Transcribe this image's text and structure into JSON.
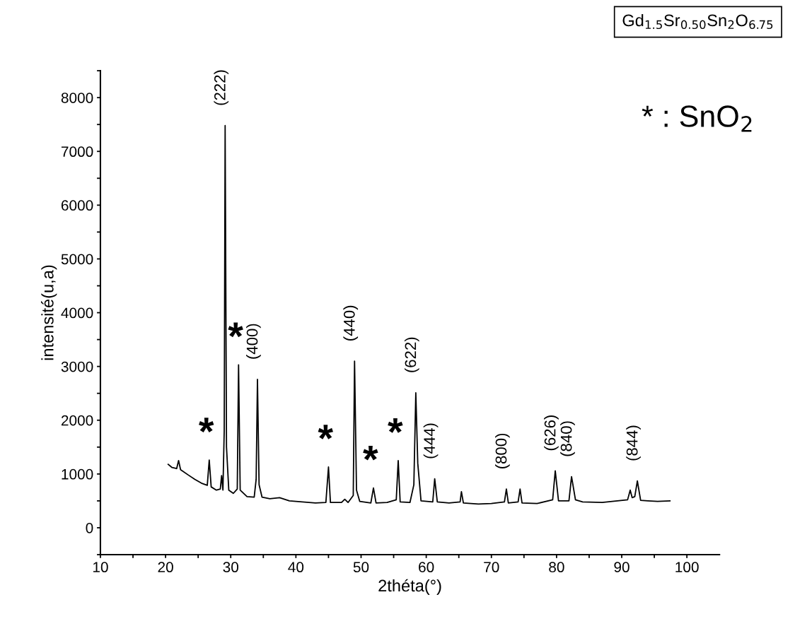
{
  "chart_data": {
    "type": "line",
    "xlabel": "2théta(°)",
    "ylabel": "intensité(u,a)",
    "xlim": [
      10,
      105
    ],
    "ylim": [
      -500,
      8500
    ],
    "xticks": [
      10,
      {
        "value": 15,
        "label": null
      },
      20,
      {
        "value": 25,
        "label": null
      },
      30,
      {
        "value": 35,
        "label": null
      },
      40,
      {
        "value": 45,
        "label": null
      },
      50,
      {
        "value": 55,
        "label": null
      },
      60,
      {
        "value": 65,
        "label": null
      },
      70,
      {
        "value": 75,
        "label": null
      },
      80,
      {
        "value": 85,
        "label": null
      },
      90,
      {
        "value": 95,
        "label": null
      },
      100
    ],
    "yticks": [
      {
        "value": -500,
        "label": null
      },
      0,
      {
        "value": 500,
        "label": null
      },
      1000,
      {
        "value": 1500,
        "label": null
      },
      2000,
      {
        "value": 2500,
        "label": null
      },
      3000,
      {
        "value": 3500,
        "label": null
      },
      4000,
      {
        "value": 4500,
        "label": null
      },
      5000,
      {
        "value": 5500,
        "label": null
      },
      6000,
      {
        "value": 6500,
        "label": null
      },
      7000,
      {
        "value": 7500,
        "label": null
      },
      8000,
      {
        "value": 8500,
        "label": null
      }
    ],
    "grid": false,
    "marker": "none",
    "line_style": "solid",
    "series": [
      {
        "color": "#000000",
        "x": [
          20.4,
          21.0,
          21.7,
          22.0,
          22.3,
          23.5,
          24.5,
          25.5,
          26.4,
          26.7,
          27.0,
          27.8,
          28.4,
          28.6,
          28.8,
          29.0,
          29.14,
          29.35,
          29.7,
          30.4,
          31.0,
          31.2,
          31.45,
          32.5,
          33.6,
          33.9,
          34.1,
          34.35,
          34.8,
          36,
          37.5,
          39,
          41,
          43,
          44.6,
          45.0,
          45.3,
          47,
          47.5,
          48,
          48.8,
          49.0,
          49.3,
          49.8,
          51.5,
          51.9,
          52.3,
          54,
          55.4,
          55.7,
          56.0,
          57.5,
          58.1,
          58.4,
          58.7,
          59.2,
          61.0,
          61.3,
          61.7,
          63.5,
          65.2,
          65.4,
          65.7,
          68,
          70,
          72.0,
          72.3,
          72.6,
          74.1,
          74.4,
          74.7,
          77,
          79.4,
          79.8,
          80.3,
          81.9,
          82.3,
          82.9,
          84,
          87,
          90.9,
          91.3,
          91.6,
          92.0,
          92.4,
          92.9,
          94,
          95.5,
          97.4
        ],
        "values": [
          1180,
          1120,
          1100,
          1250,
          1080,
          980,
          900,
          830,
          790,
          1260,
          760,
          700,
          720,
          970,
          700,
          1800,
          7480,
          1500,
          700,
          640,
          720,
          3030,
          700,
          580,
          570,
          900,
          2760,
          800,
          570,
          540,
          560,
          500,
          480,
          460,
          470,
          1130,
          470,
          470,
          530,
          470,
          600,
          3100,
          700,
          490,
          460,
          740,
          460,
          470,
          520,
          1250,
          480,
          470,
          800,
          2510,
          1200,
          500,
          480,
          910,
          480,
          460,
          480,
          670,
          460,
          440,
          450,
          480,
          720,
          460,
          480,
          720,
          460,
          450,
          520,
          1060,
          500,
          500,
          950,
          520,
          480,
          470,
          520,
          700,
          560,
          580,
          870,
          510,
          500,
          490,
          500
        ]
      }
    ],
    "annotations": [
      "Gd$_{1.5}$Sr$_{0.50}$Sn$_{2}$O$_{6.75}$",
      "* : SnO$_{2}$",
      {
        "text": "(222)",
        "x": 29.14,
        "y": 7480
      },
      {
        "text": "(400)",
        "x": 34.1,
        "y": 2760
      },
      {
        "text": "(440)",
        "x": 49.0,
        "y": 3100
      },
      {
        "text": "(622)",
        "x": 58.4,
        "y": 2510
      },
      {
        "text": "(444)",
        "x": 61.3,
        "y": 910
      },
      {
        "text": "(800)",
        "x": 72.3,
        "y": 720
      },
      {
        "text": "(626)",
        "x": 79.8,
        "y": 1060
      },
      {
        "text": "(840)",
        "x": 82.3,
        "y": 950
      },
      {
        "text": "(844)",
        "x": 92.4,
        "y": 870
      },
      {
        "text": "*",
        "x": 26.7,
        "y": 1260
      },
      {
        "text": "*",
        "x": 31.2,
        "y": 3030
      },
      {
        "text": "*",
        "x": 45.0,
        "y": 1130
      },
      {
        "text": "*",
        "x": 51.9,
        "y": 740
      },
      {
        "text": "*",
        "x": 55.7,
        "y": 1250
      }
    ]
  }
}
